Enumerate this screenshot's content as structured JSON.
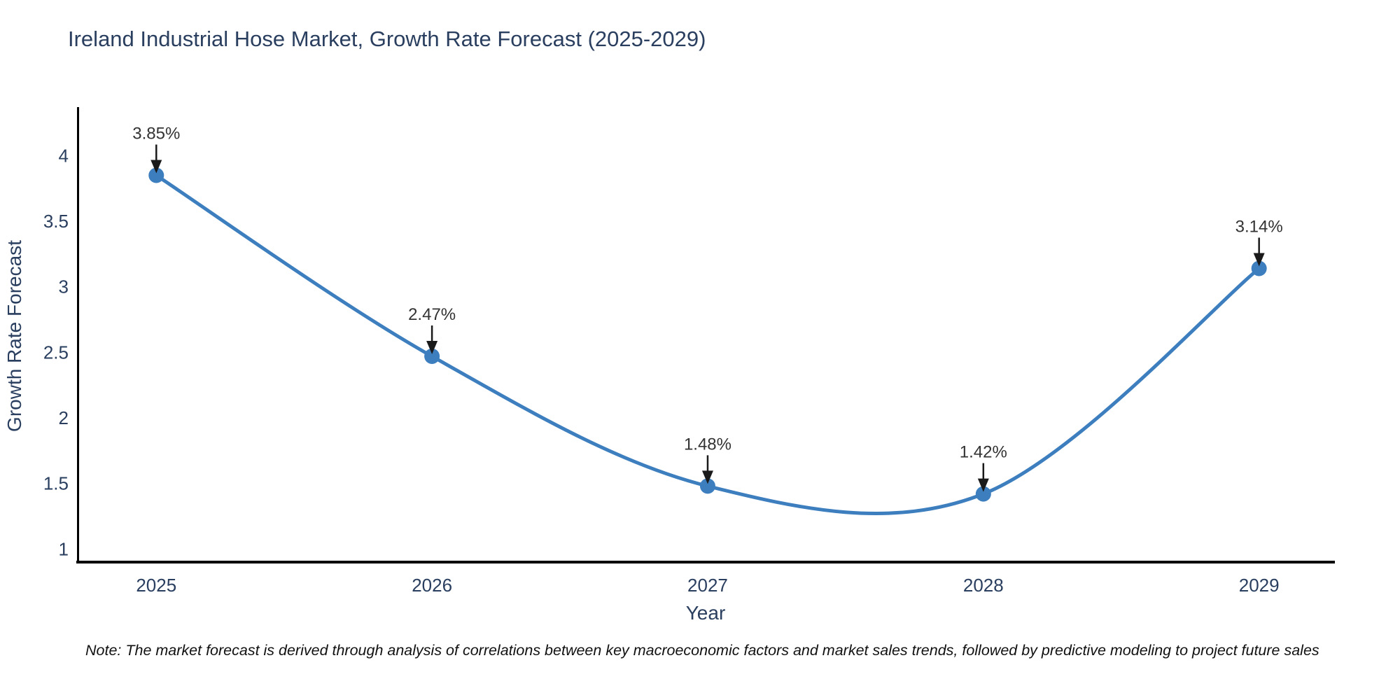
{
  "title": "Ireland Industrial Hose Market, Growth Rate Forecast (2025-2029)",
  "note": "Note: The market forecast is derived through analysis of correlations between key macroeconomic factors and market sales trends, followed by predictive modeling to project future sales",
  "chart_data": {
    "type": "line",
    "title": "Ireland Industrial Hose Market, Growth Rate Forecast (2025-2029)",
    "x": [
      2025,
      2026,
      2027,
      2028,
      2029
    ],
    "categories": [
      "2025",
      "2026",
      "2027",
      "2028",
      "2029"
    ],
    "series": [
      {
        "name": "Growth Rate Forecast",
        "values": [
          3.85,
          2.47,
          1.48,
          1.42,
          3.14
        ]
      }
    ],
    "point_labels": [
      "3.85%",
      "2.47%",
      "1.48%",
      "1.42%",
      "3.14%"
    ],
    "xlabel": "Year",
    "ylabel": "Growth Rate Forecast",
    "yticks": [
      1,
      1.5,
      2,
      2.5,
      3,
      3.5,
      4
    ],
    "ylim": [
      0.9,
      4.36
    ],
    "xlim": [
      2024.72,
      2029.27
    ],
    "line_shape": "spline",
    "grid": false,
    "legend": "none",
    "colors": {
      "line": "#3d7ebf",
      "marker": "#3d7ebf",
      "title": "#2a3f5f",
      "tick": "#2a3f5f",
      "axis_title": "#2a3f5f",
      "annotation_text": "#333333",
      "arrow": "#1a1a1a",
      "axis_line": "#000000",
      "background": "#ffffff"
    }
  }
}
